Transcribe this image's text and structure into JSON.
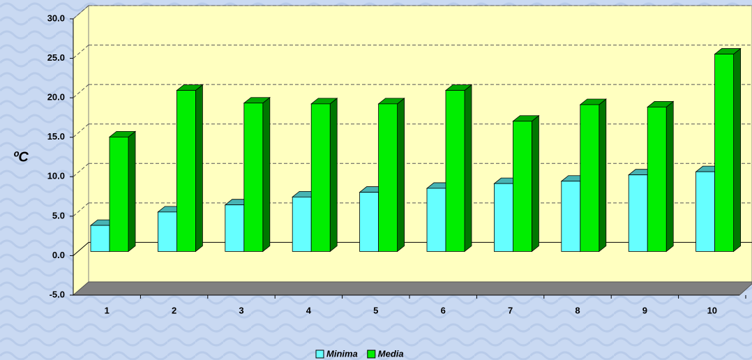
{
  "chart_data": {
    "type": "bar3d",
    "y_label": "ºC",
    "categories": [
      "1",
      "2",
      "3",
      "4",
      "5",
      "6",
      "7",
      "8",
      "9",
      "10"
    ],
    "series": [
      {
        "name": "Minima",
        "color": "#66ffff",
        "values": [
          3.3,
          5.0,
          5.9,
          6.9,
          7.5,
          8.0,
          8.6,
          8.9,
          9.7,
          10.1
        ]
      },
      {
        "name": "Media",
        "color": "#00ee00",
        "values": [
          14.5,
          20.4,
          18.8,
          18.7,
          18.7,
          20.4,
          16.5,
          18.6,
          18.3,
          25.0
        ]
      }
    ],
    "ylim": [
      -5,
      30
    ],
    "yticks": [
      {
        "value": -5,
        "label": "-5.0"
      },
      {
        "value": 0,
        "label": "0.0"
      },
      {
        "value": 5,
        "label": "5.0"
      },
      {
        "value": 10,
        "label": "10.0"
      },
      {
        "value": 15,
        "label": "15.0"
      },
      {
        "value": 20,
        "label": "20.0"
      },
      {
        "value": 25,
        "label": "25.0"
      },
      {
        "value": 30,
        "label": "30.0"
      }
    ],
    "grid": true,
    "legend": "bottom"
  }
}
